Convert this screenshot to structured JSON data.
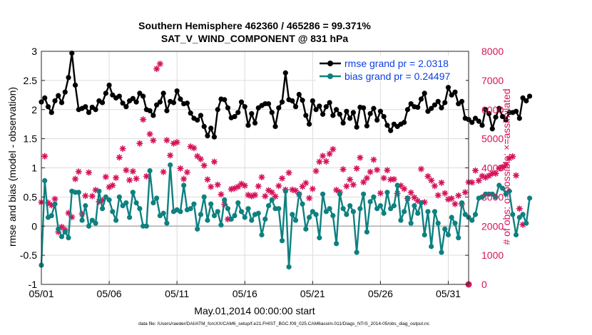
{
  "figure": {
    "title_line1": "Southern Hemisphere 462360 / 465286 = 99.371%",
    "title_line2": "SAT_V_WIND_COMPONENT @ 831 hPa",
    "footer": "data file: /Users/raeder/DAI/ATM_forcXX/CAM6_setup/f.e21.FHIST_BGC.f09_025.CAM6assim.011/Diags_NTrS_2014-05/obs_diag_output.nc"
  },
  "chart_data": {
    "type": "line",
    "xlabel": "May.01,2014 00:00:00 start",
    "ylabel_left": "rmse and bias (model - observation)",
    "ylabel_right": "# of obs: o=possible; ×=assimilated",
    "xlim": [
      0,
      31.5
    ],
    "ylim": [
      -1,
      3
    ],
    "ylim_right": [
      0,
      8000
    ],
    "x_ticks": [
      {
        "value": 0,
        "label": "05/01"
      },
      {
        "value": 5,
        "label": "05/06"
      },
      {
        "value": 10,
        "label": "05/11"
      },
      {
        "value": 15,
        "label": "05/16"
      },
      {
        "value": 20,
        "label": "05/21"
      },
      {
        "value": 25,
        "label": "05/26"
      },
      {
        "value": 30,
        "label": "05/31"
      }
    ],
    "y_ticks": [
      "-1",
      "-0.5",
      "0",
      "0.5",
      "1",
      "1.5",
      "2",
      "2.5",
      "3"
    ],
    "y_ticks_right": [
      "0",
      "1000",
      "2000",
      "3000",
      "4000",
      "5000",
      "6000",
      "7000",
      "8000"
    ],
    "grid": true,
    "legend_position": "top-right",
    "zero_line": 0,
    "colors": {
      "rmse": "#000000",
      "bias": "#0f8080",
      "obs": "#d6135a",
      "legend_text": "#0b3fe0",
      "grid": "#dcdcdc",
      "zero_line": "#b4b4b4"
    },
    "x_step_days": 0.25,
    "series": [
      {
        "name": "rmse grand pr = 2.0318",
        "axis": "left",
        "values": [
          2.13,
          2.2,
          2.05,
          1.95,
          2.15,
          2.24,
          2.12,
          2.3,
          2.55,
          2.97,
          2.42,
          2.0,
          2.02,
          2.05,
          1.95,
          2.04,
          2.0,
          2.15,
          2.12,
          2.28,
          2.42,
          2.25,
          2.2,
          2.23,
          2.11,
          2.05,
          2.15,
          2.19,
          2.13,
          2.28,
          2.23,
          2.0,
          1.98,
          1.9,
          2.08,
          2.13,
          2.28,
          1.98,
          2.14,
          2.12,
          2.32,
          2.18,
          2.1,
          2.11,
          1.94,
          1.85,
          1.82,
          1.9,
          1.71,
          1.55,
          1.68,
          1.53,
          2.0,
          2.18,
          2.17,
          2.03,
          1.86,
          1.88,
          1.95,
          2.13,
          2.05,
          1.73,
          1.93,
          1.77,
          2.03,
          2.07,
          2.1,
          2.1,
          1.95,
          1.71,
          2.03,
          2.13,
          2.63,
          2.17,
          2.15,
          2.05,
          2.26,
          2.16,
          1.9,
          1.75,
          2.15,
          2.0,
          2.06,
          1.92,
          2.05,
          2.12,
          1.9,
          2.0,
          1.92,
          1.77,
          1.97,
          1.85,
          1.95,
          1.7,
          2.04,
          2.03,
          1.72,
          1.93,
          2.02,
          1.82,
          1.97,
          1.88,
          1.73,
          1.64,
          1.75,
          1.71,
          1.75,
          1.78,
          2.0,
          2.1,
          2.05,
          2.04,
          2.18,
          2.28,
          1.97,
          2.02,
          2.08,
          2.14,
          2.03,
          2.12,
          2.38,
          2.25,
          2.3,
          2.1,
          2.14,
          1.85,
          1.83,
          1.78,
          1.85,
          1.8,
          1.73,
          2.0,
          1.93,
          1.67,
          1.87,
          2.02,
          1.88,
          1.82,
          1.95,
          1.95,
          1.97,
          1.85,
          2.2,
          2.15,
          2.23
        ]
      },
      {
        "name": "bias grand pr = 0.24497",
        "axis": "left",
        "values": [
          -0.67,
          0.78,
          0.15,
          0.18,
          0.38,
          -0.05,
          -0.18,
          -0.1,
          -0.2,
          0.6,
          0.58,
          0.58,
          0.1,
          0.35,
          0.0,
          0.1,
          0.05,
          0.6,
          0.3,
          0.5,
          0.45,
          0.25,
          0.1,
          0.5,
          0.35,
          0.4,
          0.15,
          0.58,
          0.4,
          0.3,
          0.0,
          0.0,
          0.95,
          0.4,
          0.48,
          0.18,
          0.22,
          0.05,
          1.05,
          0.25,
          0.28,
          0.25,
          0.7,
          0.28,
          0.3,
          0.38,
          -0.05,
          0.2,
          0.5,
          0.1,
          0.38,
          0.18,
          0.25,
          0.02,
          0.45,
          0.3,
          0.12,
          0.18,
          0.4,
          0.25,
          0.15,
          0.3,
          0.1,
          0.2,
          0.22,
          -0.15,
          0.12,
          0.35,
          0.45,
          0.3,
          0.3,
          -0.25,
          0.6,
          -0.7,
          0.2,
          0.1,
          0.55,
          0.38,
          -0.05,
          0.15,
          0.25,
          0.2,
          -0.2,
          0.55,
          0.25,
          0.3,
          0.18,
          -0.3,
          0.55,
          0.3,
          0.2,
          0.35,
          0.25,
          -0.45,
          0.3,
          0.55,
          -0.1,
          0.42,
          0.5,
          0.3,
          0.35,
          0.22,
          0.58,
          0.3,
          0.35,
          0.7,
          0.1,
          0.25,
          0.48,
          0.05,
          0.35,
          0.22,
          0.4,
          -0.15,
          0.25,
          -0.35,
          0.25,
          0.05,
          -0.45,
          -0.05,
          -0.15,
          0.15,
          0.05,
          -0.2,
          0.4,
          0.2,
          0.15,
          0.1,
          0.2,
          0.48,
          0.5,
          0.55,
          0.55,
          0.55,
          0.5,
          0.7,
          0.65,
          0.55,
          0.6,
          0.2,
          -0.15,
          0.15,
          0.2,
          0.05,
          0.48
        ]
      },
      {
        "name": "obs possible",
        "axis": "right",
        "values": [
          2820,
          4400,
          2800,
          2720,
          2930,
          1800,
          1970,
          1870,
          2450,
          2310,
          3620,
          3870,
          2420,
          3040,
          3840,
          3030,
          3240,
          2840,
          2890,
          3690,
          3340,
          3400,
          3660,
          4360,
          4660,
          3920,
          3580,
          3880,
          3630,
          4840,
          5660,
          3710,
          5160,
          4940,
          7400,
          7570,
          3860,
          4950,
          4430,
          4840,
          4880,
          3980,
          3620,
          3850,
          4730,
          4680,
          4400,
          4300,
          4080,
          3600,
          3350,
          4210,
          3420,
          3090,
          2750,
          2240,
          3270,
          3300,
          3350,
          3450,
          3390,
          3070,
          3030,
          3070,
          3370,
          3680,
          3030,
          3230,
          3160,
          3020,
          3380,
          3640,
          3250,
          3830,
          3250,
          3220,
          3100,
          3360,
          3480,
          2960,
          3280,
          3890,
          4210,
          4410,
          4220,
          4480,
          4640,
          3240,
          3170,
          3950,
          3370,
          3600,
          3420,
          3980,
          4350,
          3510,
          3650,
          3860,
          4280,
          3930,
          3130,
          3650,
          3920,
          3600,
          3610,
          3120,
          3390,
          3280,
          2950,
          3150,
          2980,
          2870,
          3960,
          2820,
          3710,
          3570,
          3380,
          3060,
          3490,
          3130,
          2920,
          2950,
          2760,
          3050,
          2760,
          3160,
          3510,
          3500,
          3910,
          3560,
          3720,
          3670,
          3730,
          3810,
          3810,
          3990,
          4020,
          4100,
          4330,
          4390,
          3740,
          2600,
          2050
        ]
      }
    ],
    "extra_points": [
      {
        "series": "obs possible",
        "x": 31.5,
        "value": 0
      }
    ]
  }
}
